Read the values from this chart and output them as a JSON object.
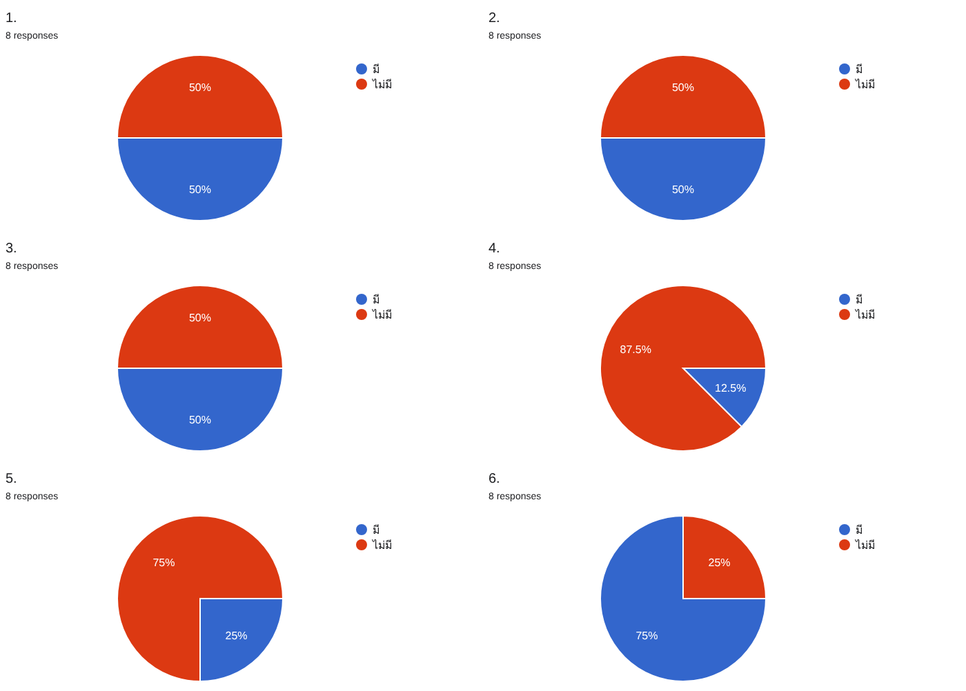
{
  "chart_data": [
    {
      "type": "pie",
      "title": "1.",
      "subtitle": "8 responses",
      "categories": [
        "มี",
        "ไม่มี"
      ],
      "values": [
        50,
        50
      ],
      "value_labels": [
        "50%",
        "50%"
      ],
      "colors": [
        "#3366cc",
        "#dc3912"
      ],
      "legend": "right"
    },
    {
      "type": "pie",
      "title": "2.",
      "subtitle": "8 responses",
      "categories": [
        "มี",
        "ไม่มี"
      ],
      "values": [
        50,
        50
      ],
      "value_labels": [
        "50%",
        "50%"
      ],
      "colors": [
        "#3366cc",
        "#dc3912"
      ],
      "legend": "right"
    },
    {
      "type": "pie",
      "title": "3.",
      "subtitle": "8 responses",
      "categories": [
        "มี",
        "ไม่มี"
      ],
      "values": [
        50,
        50
      ],
      "value_labels": [
        "50%",
        "50%"
      ],
      "colors": [
        "#3366cc",
        "#dc3912"
      ],
      "legend": "right"
    },
    {
      "type": "pie",
      "title": "4.",
      "subtitle": "8 responses",
      "categories": [
        "มี",
        "ไม่มี"
      ],
      "values": [
        12.5,
        87.5
      ],
      "value_labels": [
        "12.5%",
        "87.5%"
      ],
      "colors": [
        "#3366cc",
        "#dc3912"
      ],
      "legend": "right"
    },
    {
      "type": "pie",
      "title": "5.",
      "subtitle": "8 responses",
      "categories": [
        "มี",
        "ไม่มี"
      ],
      "values": [
        25,
        75
      ],
      "value_labels": [
        "25%",
        "75%"
      ],
      "colors": [
        "#3366cc",
        "#dc3912"
      ],
      "legend": "right"
    },
    {
      "type": "pie",
      "title": "6.",
      "subtitle": "8 responses",
      "categories": [
        "มี",
        "ไม่มี"
      ],
      "values": [
        75,
        25
      ],
      "value_labels": [
        "75%",
        "25%"
      ],
      "colors": [
        "#3366cc",
        "#dc3912"
      ],
      "legend": "right"
    }
  ]
}
